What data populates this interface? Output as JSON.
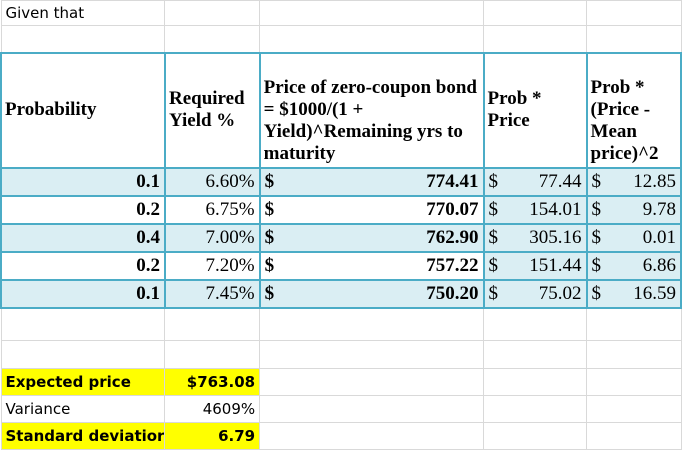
{
  "intro": "Given that",
  "headers": [
    "Probability",
    "Required Yield %",
    "Price of zero-coupon bond = $1000/(1 + Yield)^Remaining yrs to maturity",
    "Prob * Price",
    "Prob * (Price - Mean price)^2"
  ],
  "rows": [
    {
      "prob": "0.1",
      "yield": "6.60%",
      "price_sym": "$",
      "price": "774.41",
      "pp_sym": "$",
      "pp": "77.44",
      "dev_sym": "$",
      "dev": "12.85"
    },
    {
      "prob": "0.2",
      "yield": "6.75%",
      "price_sym": "$",
      "price": "770.07",
      "pp_sym": "$",
      "pp": "154.01",
      "dev_sym": "$",
      "dev": "9.78"
    },
    {
      "prob": "0.4",
      "yield": "7.00%",
      "price_sym": "$",
      "price": "762.90",
      "pp_sym": "$",
      "pp": "305.16",
      "dev_sym": "$",
      "dev": "0.01"
    },
    {
      "prob": "0.2",
      "yield": "7.20%",
      "price_sym": "$",
      "price": "757.22",
      "pp_sym": "$",
      "pp": "151.44",
      "dev_sym": "$",
      "dev": "6.86"
    },
    {
      "prob": "0.1",
      "yield": "7.45%",
      "price_sym": "$",
      "price": "750.20",
      "pp_sym": "$",
      "pp": "75.02",
      "dev_sym": "$",
      "dev": "16.59"
    }
  ],
  "summary": {
    "expected_label": "Expected price",
    "expected_value": "$763.08",
    "variance_label": "Variance",
    "variance_value": "4609%",
    "sd_label": "Standard deviatior",
    "sd_value": "6.79"
  },
  "colors": {
    "border": "#4bacc6",
    "band": "#daeef3",
    "highlight": "#ffff00"
  }
}
